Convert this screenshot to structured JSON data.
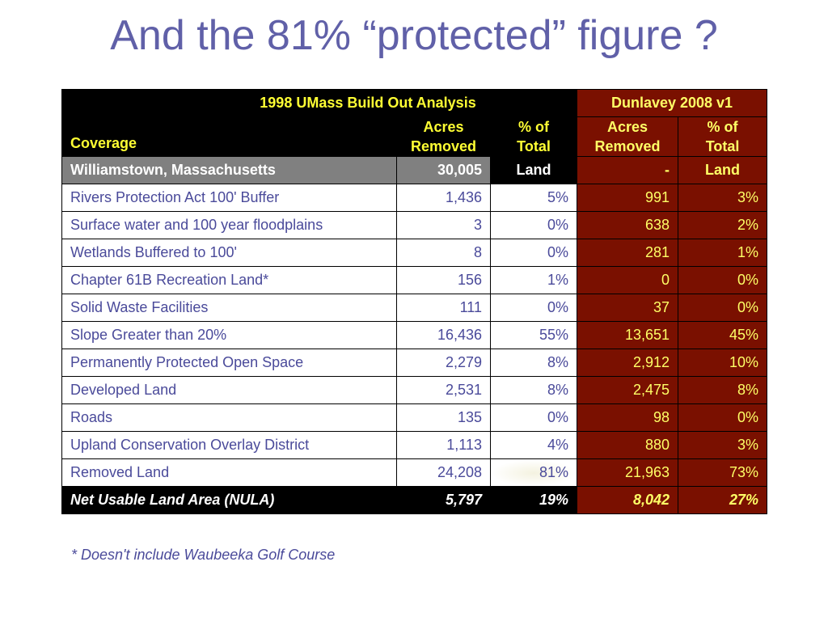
{
  "title": "And the 81% “protected” figure ?",
  "table": {
    "group_left": "1998 UMass Build Out Analysis",
    "group_right": "Dunlavey 2008 v1",
    "col_coverage": "Coverage",
    "col_acres_line1": "Acres",
    "col_acres_line2": "Removed",
    "col_pct_line1": "% of",
    "col_pct_line2": "Total",
    "total_row": {
      "label": "Williamstown, Massachusetts",
      "umass_acres": "30,005",
      "umass_pct": "Land",
      "dun_acres": "-",
      "dun_pct": "Land"
    },
    "rows": [
      {
        "label": "Rivers Protection Act 100' Buffer",
        "umass_acres": "1,436",
        "umass_pct": "5%",
        "dun_acres": "991",
        "dun_pct": "3%"
      },
      {
        "label": "Surface water and 100 year floodplains",
        "umass_acres": "3",
        "umass_pct": "0%",
        "dun_acres": "638",
        "dun_pct": "2%"
      },
      {
        "label": "Wetlands Buffered to 100'",
        "umass_acres": "8",
        "umass_pct": "0%",
        "dun_acres": "281",
        "dun_pct": "1%"
      },
      {
        "label": "Chapter 61B Recreation Land*",
        "umass_acres": "156",
        "umass_pct": "1%",
        "dun_acres": "0",
        "dun_pct": "0%"
      },
      {
        "label": "Solid Waste Facilities",
        "umass_acres": "111",
        "umass_pct": "0%",
        "dun_acres": "37",
        "dun_pct": "0%"
      },
      {
        "label": "Slope Greater than 20%",
        "umass_acres": "16,436",
        "umass_pct": "55%",
        "dun_acres": "13,651",
        "dun_pct": "45%"
      },
      {
        "label": "Permanently Protected Open Space",
        "umass_acres": "2,279",
        "umass_pct": "8%",
        "dun_acres": "2,912",
        "dun_pct": "10%"
      },
      {
        "label": "Developed Land",
        "umass_acres": "2,531",
        "umass_pct": "8%",
        "dun_acres": "2,475",
        "dun_pct": "8%"
      },
      {
        "label": "Roads",
        "umass_acres": "135",
        "umass_pct": "0%",
        "dun_acres": "98",
        "dun_pct": "0%"
      },
      {
        "label": "Upland Conservation Overlay District",
        "umass_acres": "1,113",
        "umass_pct": "4%",
        "dun_acres": "880",
        "dun_pct": "3%"
      },
      {
        "label": "Removed Land",
        "umass_acres": "24,208",
        "umass_pct": "81%",
        "dun_acres": "21,963",
        "dun_pct": "73%"
      }
    ],
    "net_row": {
      "label": "Net Usable Land Area (NULA)",
      "umass_acres": "5,797",
      "umass_pct": "19%",
      "dun_acres": "8,042",
      "dun_pct": "27%"
    }
  },
  "footnote": "* Doesn't include Waubeeka Golf Course",
  "colors": {
    "title": "#6060a8",
    "header_black": "#000000",
    "header_yellow": "#ffff33",
    "dunlavey_red": "#7a1000",
    "total_grey": "#808080",
    "body_text": "#4a4a9a"
  }
}
